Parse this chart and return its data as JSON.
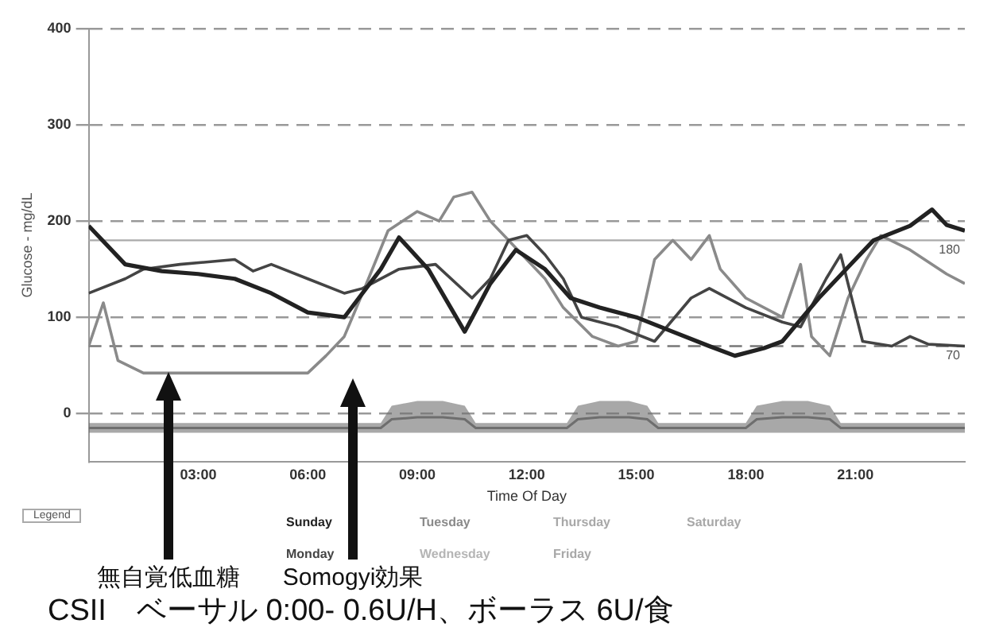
{
  "chart_data": {
    "type": "line",
    "xlabel": "Time Of Day",
    "ylabel": "Glucose - mg/dL",
    "legend_title": "Legend",
    "legend": "bottom",
    "grid": "y",
    "line_style": "solid",
    "marker": "none",
    "xlim": [
      0,
      24
    ],
    "xticks": [
      {
        "value": 3,
        "label": "03:00"
      },
      {
        "value": 6,
        "label": "06:00"
      },
      {
        "value": 9,
        "label": "09:00"
      },
      {
        "value": 12,
        "label": "12:00"
      },
      {
        "value": 15,
        "label": "15:00"
      },
      {
        "value": 18,
        "label": "18:00"
      },
      {
        "value": 21,
        "label": "21:00"
      }
    ],
    "ylim": [
      -50,
      400
    ],
    "yticks": [
      0,
      100,
      200,
      300,
      400
    ],
    "ref_lines": [
      {
        "axis": "y",
        "value": 180,
        "label": "180",
        "line_style": "solid",
        "color": "#aaaaaa"
      },
      {
        "axis": "y",
        "value": 70,
        "label": "70",
        "line_style": "dashed",
        "color": "#777777"
      }
    ],
    "series": [
      {
        "name": "Sunday",
        "color": "#222222",
        "x": [
          0,
          1,
          2,
          3,
          4,
          5,
          6,
          7,
          8,
          8.5,
          9.3,
          10.3,
          11,
          11.7,
          12.5,
          13.2,
          14,
          15,
          16,
          17,
          17.7,
          18.5,
          19,
          20,
          21,
          21.5,
          22.5,
          23.1,
          23.5,
          24
        ],
        "values": [
          195,
          155,
          148,
          145,
          140,
          125,
          105,
          100,
          150,
          183,
          150,
          85,
          135,
          170,
          150,
          120,
          110,
          100,
          85,
          70,
          60,
          68,
          75,
          120,
          160,
          180,
          195,
          212,
          196,
          190
        ]
      },
      {
        "name": "Monday",
        "color": "#444444",
        "x": [
          0,
          1,
          1.5,
          2.5,
          4,
          4.5,
          5,
          6,
          7,
          7.5,
          8.5,
          9.5,
          10.5,
          11,
          11.5,
          12,
          12.5,
          13,
          13.5,
          14.5,
          15.5,
          16.5,
          17,
          18,
          19,
          19.5,
          20.2,
          20.6,
          21.2,
          22,
          22.5,
          23,
          24
        ],
        "values": [
          125,
          140,
          150,
          155,
          160,
          148,
          155,
          140,
          125,
          130,
          150,
          155,
          120,
          140,
          180,
          185,
          165,
          140,
          100,
          90,
          75,
          120,
          130,
          110,
          95,
          90,
          140,
          165,
          75,
          70,
          80,
          72,
          70
        ]
      },
      {
        "name": "Tuesday",
        "color": "#8a8a8a",
        "x": [
          0,
          0.4,
          0.8,
          1.5,
          6,
          6.5,
          7,
          7.5,
          8.2,
          9,
          9.6,
          10,
          10.5,
          11,
          11.5,
          12.5,
          13,
          13.8,
          14.5,
          15,
          15.5,
          16,
          16.5,
          17,
          17.3,
          18,
          19,
          19.5,
          19.8,
          20.3,
          20.8,
          21.3,
          21.7,
          22.5,
          23.5,
          24
        ],
        "values": [
          70,
          115,
          55,
          42,
          42,
          60,
          80,
          125,
          190,
          210,
          200,
          225,
          230,
          200,
          180,
          140,
          110,
          80,
          70,
          75,
          160,
          180,
          160,
          185,
          150,
          120,
          100,
          155,
          80,
          60,
          120,
          160,
          185,
          170,
          145,
          135
        ]
      },
      {
        "type": "line",
        "color": "#6e6e6e",
        "x": [
          0,
          8,
          8.3,
          9,
          9.7,
          10.3,
          10.6,
          13.1,
          13.4,
          14,
          14.8,
          15.3,
          15.6,
          18,
          18.3,
          19,
          19.7,
          20.3,
          20.6,
          24
        ],
        "values": [
          -15,
          -15,
          -6,
          -4,
          -4,
          -6,
          -15,
          -15,
          -6,
          -4,
          -4,
          -6,
          -15,
          -15,
          -6,
          -4,
          -4,
          -6,
          -15,
          -15
        ],
        "upper": [
          -10,
          -10,
          8,
          13,
          13,
          8,
          -10,
          -10,
          8,
          13,
          13,
          8,
          -10,
          -10,
          8,
          13,
          13,
          8,
          -10,
          -10
        ],
        "lower": [
          -20,
          -20,
          -20,
          -20,
          -20,
          -20,
          -20,
          -20,
          -20,
          -20,
          -20,
          -20,
          -20,
          -20,
          -20,
          -20,
          -20,
          -20,
          -20,
          -20
        ]
      }
    ],
    "annotations": [
      "Wednesday",
      "Thursday",
      "Friday",
      "Saturday",
      "無自覚低血糖",
      "Somogyi効果",
      "CSII　ベーサル 0:00- 0.6U/H、ボーラス 6U/食"
    ]
  }
}
